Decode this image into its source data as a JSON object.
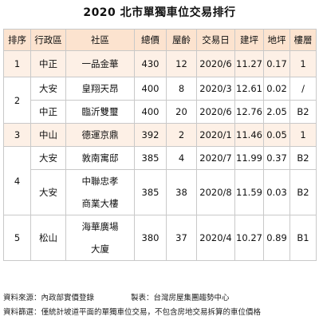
{
  "title": "2020 北市單獨車位交易排行",
  "columns": [
    "排序",
    "行政區",
    "社區",
    "總價",
    "屋齡",
    "交易日",
    "建坪",
    "地坪",
    "樓層"
  ],
  "rows": [
    {
      "rank": "1",
      "district": "中正",
      "community": [
        "一品金華"
      ],
      "price": "430",
      "age": "12",
      "date": "2020/6",
      "building": "11.27",
      "land": "0.17",
      "floor": "1"
    },
    {
      "rank": "2",
      "district": "大安",
      "community": [
        "皇翔天昂"
      ],
      "price": "400",
      "age": "8",
      "date": "2020/3",
      "building": "12.61",
      "land": "0.02",
      "floor": "/"
    },
    {
      "rank": "2",
      "district": "中正",
      "community": [
        "臨沂雙璽"
      ],
      "price": "400",
      "age": "20",
      "date": "2020/6",
      "building": "12.76",
      "land": "2.05",
      "floor": "B2"
    },
    {
      "rank": "3",
      "district": "中山",
      "community": [
        "德運京鼎"
      ],
      "price": "392",
      "age": "2",
      "date": "2020/1",
      "building": "11.46",
      "land": "0.05",
      "floor": "1"
    },
    {
      "rank": "4",
      "district": "大安",
      "community": [
        "敦南寓邸"
      ],
      "price": "385",
      "age": "4",
      "date": "2020/7",
      "building": "11.99",
      "land": "0.37",
      "floor": "B2"
    },
    {
      "rank": "4",
      "district": "大安",
      "community": [
        "中聯忠孝",
        "商業大樓"
      ],
      "price": "385",
      "age": "38",
      "date": "2020/8",
      "building": "11.59",
      "land": "0.03",
      "floor": "B2"
    },
    {
      "rank": "5",
      "district": "松山",
      "community": [
        "海華廣場",
        "大廈"
      ],
      "price": "380",
      "age": "37",
      "date": "2020/4",
      "building": "10.27",
      "land": "0.89",
      "floor": "B1"
    }
  ],
  "notes": {
    "source": "資料來源：內政部實價登錄",
    "producer": "製表：台灣房屋集團趨勢中心",
    "filter": "資料篩選：僅統計坡道平面的單獨車位交易，不包含房地交易拆算的車位價格"
  },
  "colors": {
    "header_bg": "#fce3cf",
    "band_bg": "#fdf0e6",
    "border": "#c9c9c9"
  }
}
